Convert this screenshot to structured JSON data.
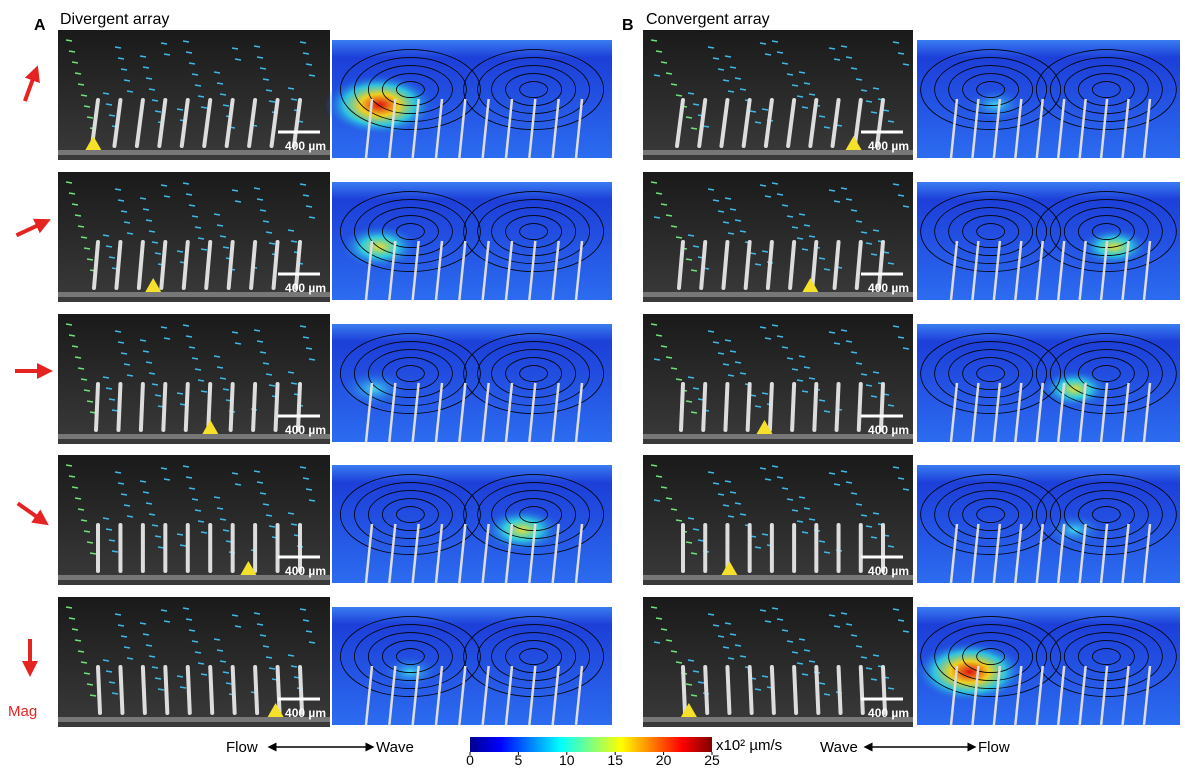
{
  "panels": [
    {
      "label": "A",
      "title": "Divergent array",
      "scale_bars": [
        "400 µm",
        "400 µm",
        "400 µm",
        "400 µm",
        "400 µm"
      ]
    },
    {
      "label": "B",
      "title": "Convergent array",
      "scale_bars": [
        "400 µm",
        "400 µm",
        "400 µm",
        "400 µm",
        "400 µm"
      ]
    }
  ],
  "arrow_label": "Mag",
  "direction_left": {
    "left": "Flow",
    "right": "Wave"
  },
  "direction_right": {
    "left": "Wave",
    "right": "Flow"
  },
  "colorbar": {
    "unit": "x10² µm/s",
    "range": [
      0,
      25
    ],
    "ticks": [
      0,
      5,
      10,
      15,
      20,
      25
    ]
  }
}
